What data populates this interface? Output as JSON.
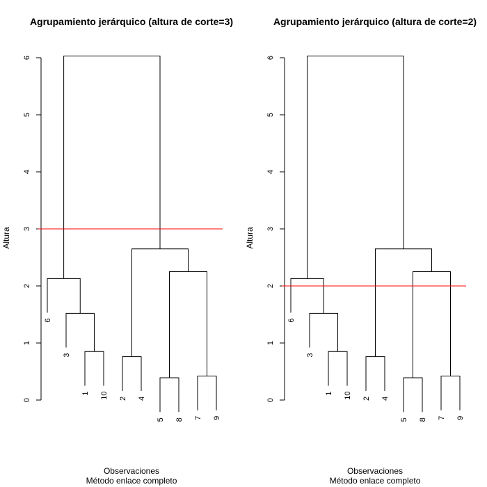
{
  "chart_data": [
    {
      "type": "dendrogram",
      "title": "Agrupamiento jerárquico (altura de corte=3)",
      "ylabel": "Altura",
      "xlabel": "Observaciones",
      "subtitle": "Método enlace completo",
      "ylim": [
        0,
        6
      ],
      "yticks": [
        0,
        1,
        2,
        3,
        4,
        5,
        6
      ],
      "cut_height": 3,
      "cut_color": "#ff0000",
      "leaf_order": [
        "6",
        "3",
        "1",
        "10",
        "2",
        "4",
        "5",
        "8",
        "7",
        "9"
      ],
      "merges": [
        {
          "left": "5",
          "right": "8",
          "height": 0.39
        },
        {
          "left": "7",
          "right": "9",
          "height": 0.42
        },
        {
          "left": "2",
          "right": "4",
          "height": 0.76
        },
        {
          "left": "1",
          "right": "10",
          "height": 0.85
        },
        {
          "left": "3",
          "right": "{1,10}",
          "height": 1.52
        },
        {
          "left": "6",
          "right": "{3,1,10}",
          "height": 2.13
        },
        {
          "left": "{5,8}",
          "right": "{7,9}",
          "height": 2.25
        },
        {
          "left": "{2,4}",
          "right": "{5,8,7,9}",
          "height": 2.65
        },
        {
          "left": "{6,3,1,10}",
          "right": "{2,4,5,8,7,9}",
          "height": 6.03
        }
      ]
    },
    {
      "type": "dendrogram",
      "title": "Agrupamiento jerárquico (altura de corte=2)",
      "ylabel": "Altura",
      "xlabel": "Observaciones",
      "subtitle": "Método enlace completo",
      "ylim": [
        0,
        6
      ],
      "yticks": [
        0,
        1,
        2,
        3,
        4,
        5,
        6
      ],
      "cut_height": 2,
      "cut_color": "#ff0000",
      "leaf_order": [
        "6",
        "3",
        "1",
        "10",
        "2",
        "4",
        "5",
        "8",
        "7",
        "9"
      ],
      "merges": [
        {
          "left": "5",
          "right": "8",
          "height": 0.39
        },
        {
          "left": "7",
          "right": "9",
          "height": 0.42
        },
        {
          "left": "2",
          "right": "4",
          "height": 0.76
        },
        {
          "left": "1",
          "right": "10",
          "height": 0.85
        },
        {
          "left": "3",
          "right": "{1,10}",
          "height": 1.52
        },
        {
          "left": "6",
          "right": "{3,1,10}",
          "height": 2.13
        },
        {
          "left": "{5,8}",
          "right": "{7,9}",
          "height": 2.25
        },
        {
          "left": "{2,4}",
          "right": "{5,8,7,9}",
          "height": 2.65
        },
        {
          "left": "{6,3,1,10}",
          "right": "{2,4,5,8,7,9}",
          "height": 6.03
        }
      ]
    }
  ]
}
